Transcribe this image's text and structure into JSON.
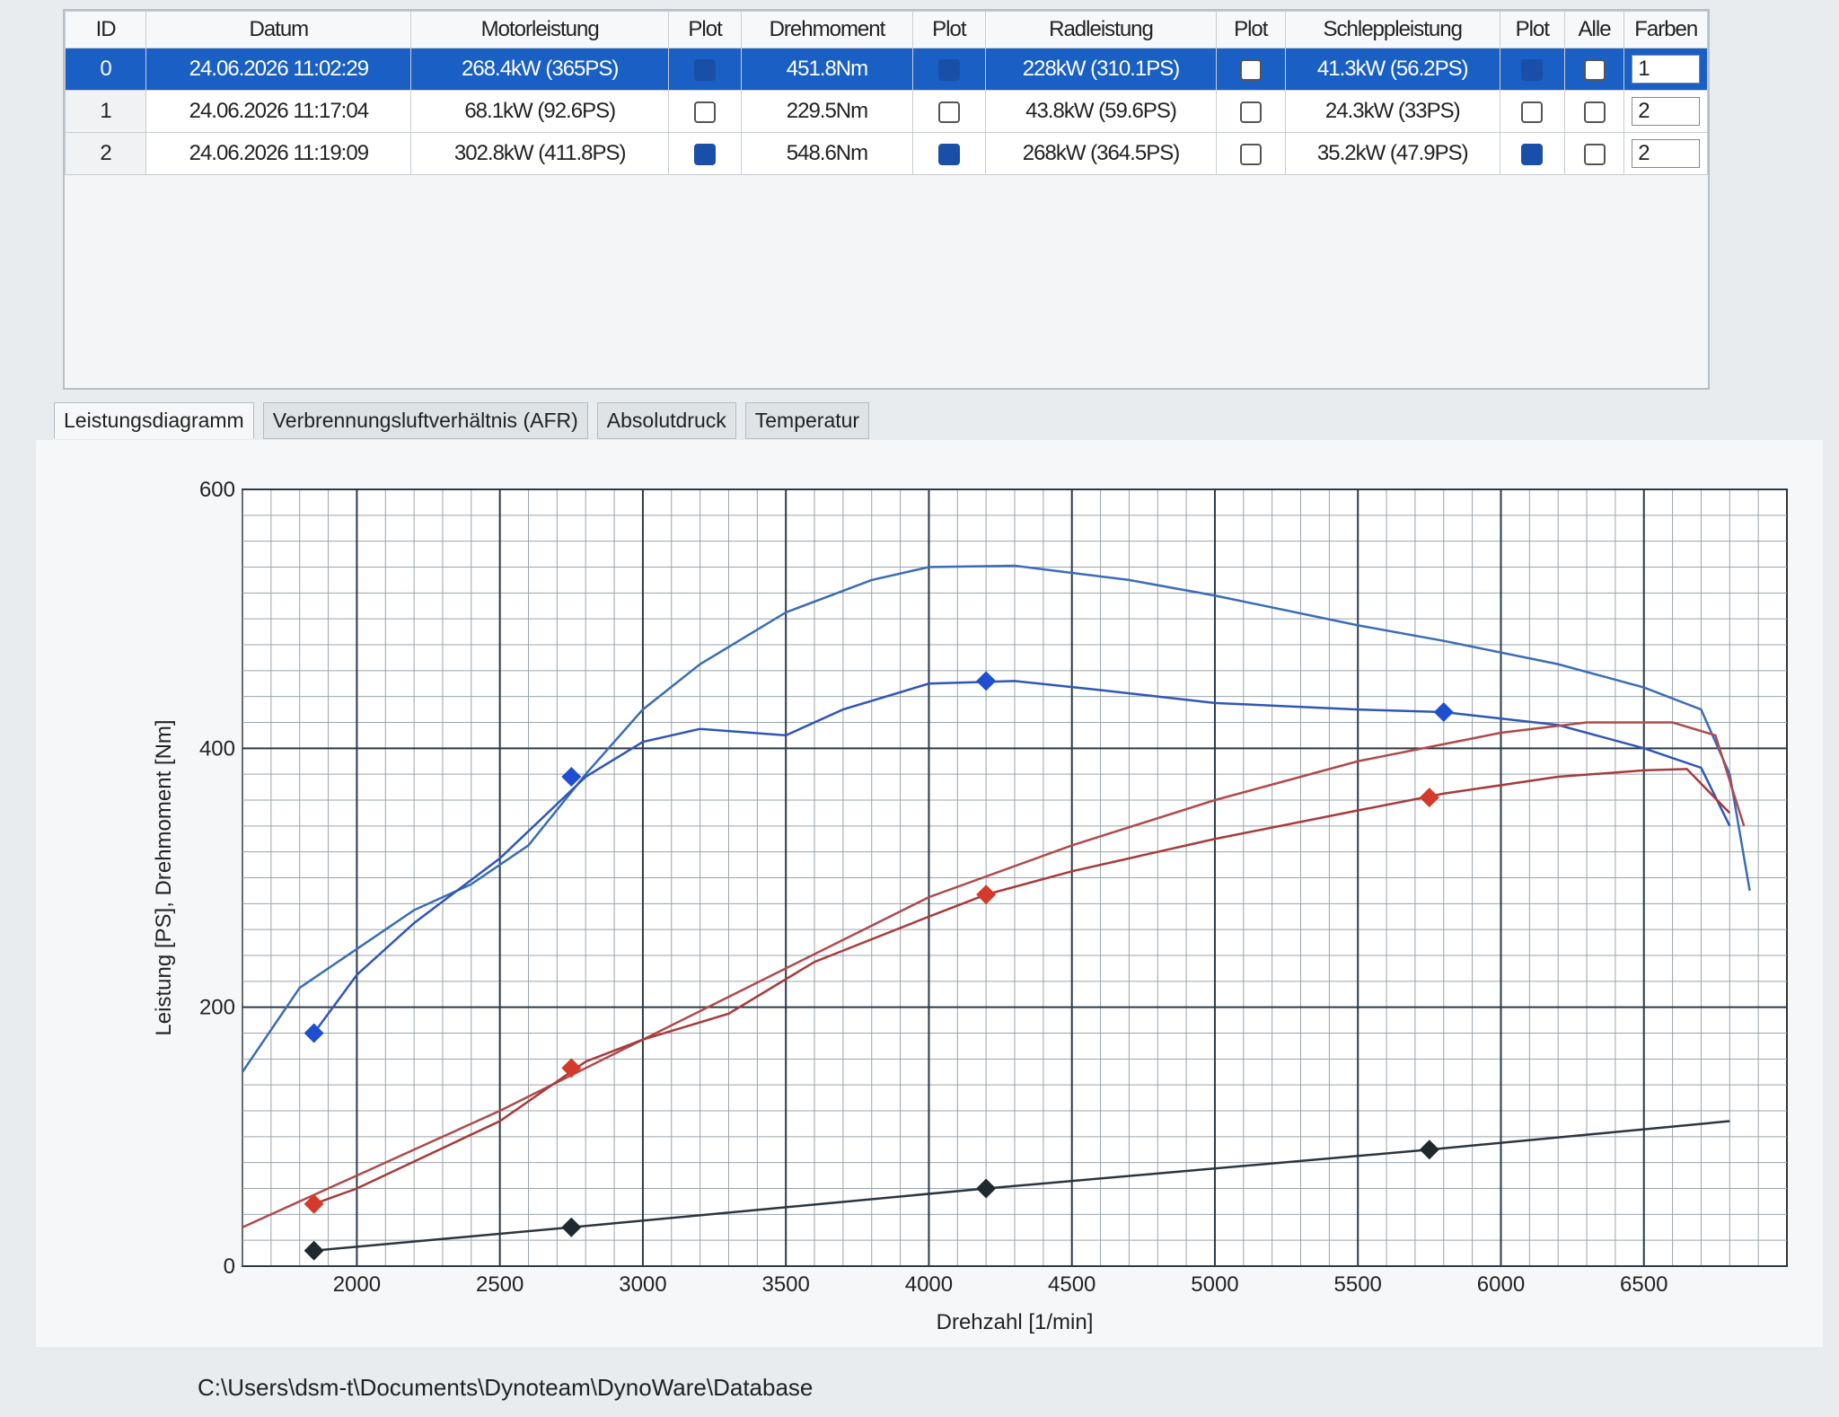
{
  "table": {
    "columns": [
      "ID",
      "Datum",
      "Motorleistung",
      "Plot",
      "Drehmoment",
      "Plot",
      "Radleistung",
      "Plot",
      "Schleppleistung",
      "Plot",
      "Alle",
      "Farben"
    ],
    "selected_row": 0,
    "rows": [
      {
        "id": 0,
        "datum": "24.06.2026 11:02:29",
        "motorleistung": "268.4kW (365PS)",
        "plot_motor": true,
        "drehmoment": "451.8Nm",
        "plot_dreh": true,
        "radleistung": "228kW (310.1PS)",
        "plot_rad": false,
        "schleppleistung": "41.3kW (56.2PS)",
        "plot_schlepp": true,
        "alle": false,
        "farben": 1
      },
      {
        "id": 1,
        "datum": "24.06.2026 11:17:04",
        "motorleistung": "68.1kW (92.6PS)",
        "plot_motor": false,
        "drehmoment": "229.5Nm",
        "plot_dreh": false,
        "radleistung": "43.8kW (59.6PS)",
        "plot_rad": false,
        "schleppleistung": "24.3kW (33PS)",
        "plot_schlepp": false,
        "alle": false,
        "farben": 2
      },
      {
        "id": 2,
        "datum": "24.06.2026 11:19:09",
        "motorleistung": "302.8kW (411.8PS)",
        "plot_motor": true,
        "drehmoment": "548.6Nm",
        "plot_dreh": true,
        "radleistung": "268kW (364.5PS)",
        "plot_rad": false,
        "schleppleistung": "35.2kW (47.9PS)",
        "plot_schlepp": true,
        "alle": false,
        "farben": 2
      }
    ]
  },
  "tabs": [
    "Leistungsdiagramm",
    "Verbrennungsluftverhältnis (AFR)",
    "Absolutdruck",
    "Temperatur"
  ],
  "active_tab": 0,
  "status_path": "C:\\Users\\dsm-t\\Documents\\Dynoteam\\DynoWare\\Database",
  "chart_data": {
    "type": "line",
    "xlabel": "Drehzahl [1/min]",
    "ylabel": "Leistung [PS], Drehmoment [Nm]",
    "xlim": [
      1600,
      7000
    ],
    "ylim": [
      0,
      600
    ],
    "xticks": [
      2000,
      2500,
      3000,
      3500,
      4000,
      4500,
      5000,
      5500,
      6000,
      6500
    ],
    "yticks": [
      0,
      200,
      400,
      600
    ],
    "grid": true,
    "xminor_step": 100,
    "yminor_step": 20,
    "series": [
      {
        "color": "#3a6db5",
        "x": [
          1600,
          1800,
          2000,
          2200,
          2400,
          2600,
          2800,
          3000,
          3200,
          3500,
          3800,
          4000,
          4300,
          4700,
          5000,
          5500,
          5800,
          6200,
          6500,
          6700,
          6800,
          6870
        ],
        "values": [
          150,
          215,
          245,
          275,
          295,
          325,
          380,
          430,
          465,
          505,
          530,
          540,
          541,
          530,
          518,
          495,
          483,
          465,
          447,
          430,
          380,
          290
        ]
      },
      {
        "color": "#2f56b8",
        "x": [
          1850,
          2000,
          2200,
          2500,
          2800,
          3000,
          3200,
          3500,
          3700,
          4000,
          4300,
          4600,
          5000,
          5500,
          5800,
          6200,
          6500,
          6700,
          6800
        ],
        "values": [
          180,
          225,
          265,
          315,
          378,
          405,
          415,
          410,
          430,
          450,
          452,
          445,
          435,
          430,
          428,
          418,
          400,
          385,
          340
        ]
      },
      {
        "color": "#b04a4a",
        "x": [
          1600,
          2000,
          2500,
          3000,
          3500,
          4000,
          4500,
          5000,
          5500,
          6000,
          6300,
          6600,
          6750,
          6850
        ],
        "values": [
          30,
          70,
          120,
          175,
          230,
          285,
          325,
          360,
          390,
          412,
          420,
          420,
          410,
          340
        ]
      },
      {
        "color": "#a83a3a",
        "x": [
          1850,
          2000,
          2500,
          2800,
          3000,
          3300,
          3600,
          4000,
          4200,
          4500,
          5000,
          5500,
          5800,
          6200,
          6500,
          6650,
          6800
        ],
        "values": [
          48,
          60,
          112,
          158,
          175,
          195,
          235,
          270,
          287,
          305,
          330,
          352,
          365,
          378,
          383,
          384,
          350
        ]
      },
      {
        "color": "#2b3540",
        "x": [
          1850,
          2750,
          4200,
          5750,
          6800
        ],
        "values": [
          12,
          30,
          60,
          90,
          112
        ]
      }
    ],
    "markers": [
      {
        "color": "#1f4fd0",
        "x": [
          1850,
          2750,
          4200,
          5800
        ],
        "values": [
          180,
          378,
          452,
          428
        ]
      },
      {
        "color": "#d33a2a",
        "x": [
          1850,
          2750,
          4200,
          5750
        ],
        "values": [
          48,
          153,
          287,
          362
        ]
      },
      {
        "color": "#1e2a30",
        "x": [
          1850,
          2750,
          4200,
          5750
        ],
        "values": [
          12,
          30,
          60,
          90
        ]
      }
    ]
  }
}
